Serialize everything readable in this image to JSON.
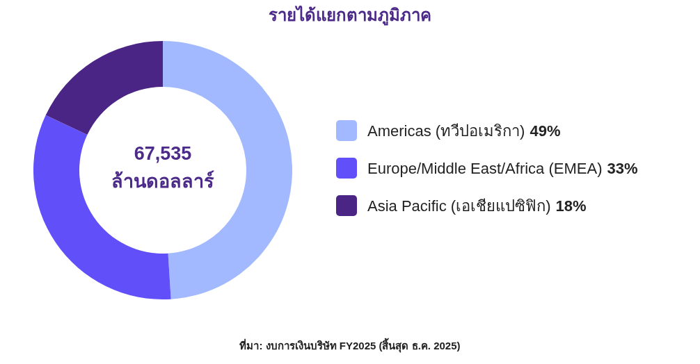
{
  "chart_data": {
    "type": "donut",
    "title": "รายได้แยกตามภูมิภาค",
    "categories": [
      "Americas (ทวีปอเมริกา)",
      "Europe/Middle East/Africa (EMEA)",
      "Asia Pacific (เอเชียแปซิฟิก)"
    ],
    "values": [
      49,
      33,
      18
    ],
    "colors": [
      "#a3b9ff",
      "#6150fa",
      "#4a2585"
    ],
    "value_labels": [
      "49%",
      "33%",
      "18%"
    ],
    "legend": "right",
    "annotations": [
      "67,535",
      "ล้านดอลลาร์",
      "ที่มา: งบการเงินบริษัท FY2025 (สิ้นสุด ธ.ค. 2025)"
    ]
  }
}
